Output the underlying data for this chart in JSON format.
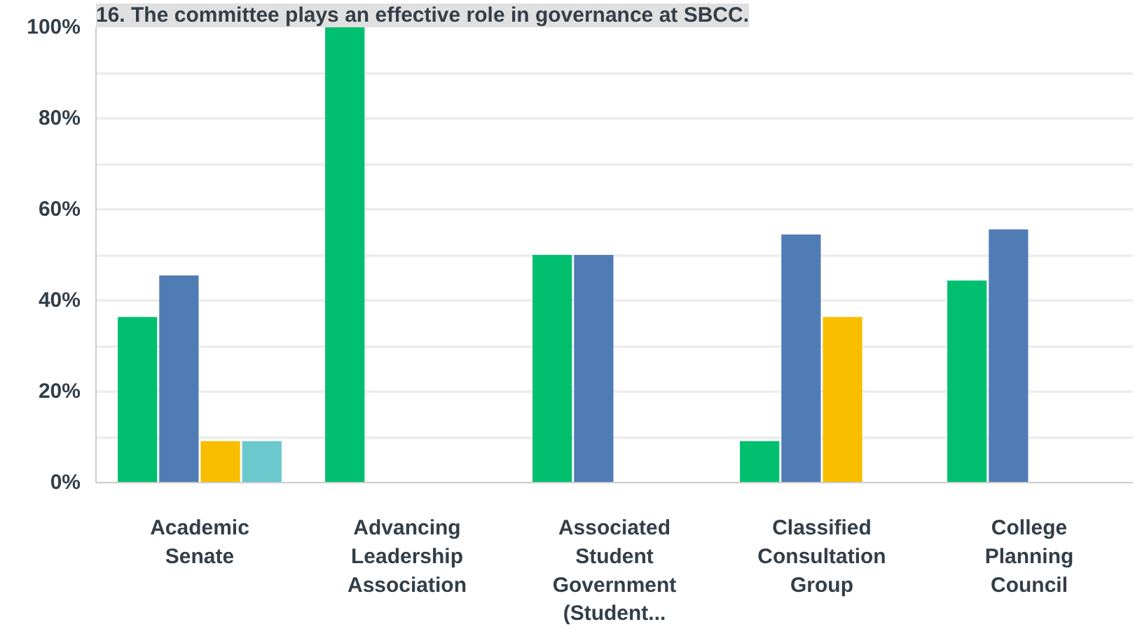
{
  "chart_data": {
    "type": "bar",
    "title": "16. The committee plays an effective role in governance at SBCC.",
    "categories": [
      "Academic Senate",
      "Advancing Leadership Association",
      "Associated Student Government (Student...",
      "Classified Consultation Group",
      "College Planning Council"
    ],
    "series": [
      {
        "color": "#00bf6f",
        "values": [
          36.4,
          100,
          50,
          9.1,
          44.4
        ]
      },
      {
        "color": "#507cb6",
        "values": [
          45.5,
          0,
          50,
          54.5,
          55.6
        ]
      },
      {
        "color": "#f9be00",
        "values": [
          9.1,
          0,
          0,
          36.4,
          0
        ]
      },
      {
        "color": "#6bc8cd",
        "values": [
          9.1,
          0,
          0,
          0,
          0
        ]
      }
    ],
    "ylim": [
      0,
      100
    ],
    "yticks": [
      {
        "value": 0,
        "label": "0%"
      },
      {
        "value": 10,
        "label": null
      },
      {
        "value": 20,
        "label": "20%"
      },
      {
        "value": 30,
        "label": null
      },
      {
        "value": 40,
        "label": "40%"
      },
      {
        "value": 50,
        "label": null
      },
      {
        "value": 60,
        "label": "60%"
      },
      {
        "value": 70,
        "label": null
      },
      {
        "value": 80,
        "label": "80%"
      },
      {
        "value": 90,
        "label": null
      },
      {
        "value": 100,
        "label": "100%"
      }
    ],
    "grid": "y"
  }
}
